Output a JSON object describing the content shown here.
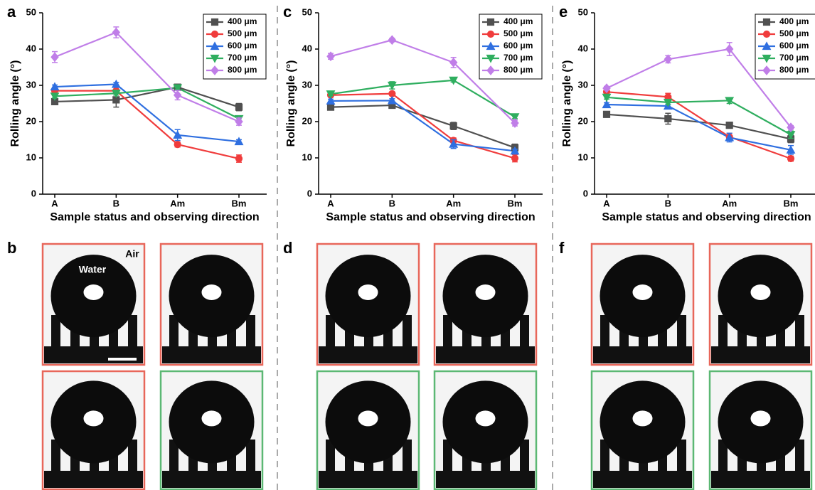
{
  "chart_data": [
    {
      "type": "line",
      "panel_label": "a",
      "categories": [
        "A",
        "B",
        "Am",
        "Bm"
      ],
      "xlabel": "Sample status and observing direction",
      "ylabel": "Rolling angle (°)",
      "ylim": [
        0,
        50
      ],
      "yticks": [
        0,
        10,
        20,
        30,
        40,
        50
      ],
      "legend": "upper right",
      "series": [
        {
          "name": "400 μm",
          "color": "#505050",
          "marker": "square",
          "values": [
            25.5,
            26,
            29.5,
            24
          ],
          "errors": [
            0.5,
            2,
            0.5,
            1
          ]
        },
        {
          "name": "500 μm",
          "color": "#f03c3c",
          "marker": "circle",
          "values": [
            28.5,
            28.5,
            13.7,
            9.8
          ],
          "errors": [
            0.5,
            0.5,
            0.7,
            1
          ]
        },
        {
          "name": "600 μm",
          "color": "#2f6fe0",
          "marker": "triangle-up",
          "values": [
            29.6,
            30.3,
            16.3,
            14.5
          ],
          "errors": [
            0.5,
            0.5,
            1.5,
            0.5
          ]
        },
        {
          "name": "700 μm",
          "color": "#2fae5f",
          "marker": "triangle-down",
          "values": [
            27,
            27.8,
            29.3,
            20.8
          ],
          "errors": [
            0.5,
            0.5,
            0.5,
            0.7
          ]
        },
        {
          "name": "800 μm",
          "color": "#c07ee8",
          "marker": "diamond",
          "values": [
            37.8,
            44.6,
            27.3,
            20
          ],
          "errors": [
            1.5,
            1.5,
            1.3,
            1
          ]
        }
      ]
    },
    {
      "type": "line",
      "panel_label": "c",
      "categories": [
        "A",
        "B",
        "Am",
        "Bm"
      ],
      "xlabel": "Sample status and observing direction",
      "ylabel": "Rolling angle (°)",
      "ylim": [
        0,
        50
      ],
      "yticks": [
        0,
        10,
        20,
        30,
        40,
        50
      ],
      "legend": "upper right",
      "series": [
        {
          "name": "400 μm",
          "color": "#505050",
          "marker": "square",
          "values": [
            24,
            24.5,
            18.8,
            12.8
          ],
          "errors": [
            0.7,
            0.5,
            1,
            1
          ]
        },
        {
          "name": "500 μm",
          "color": "#f03c3c",
          "marker": "circle",
          "values": [
            27.3,
            27.7,
            14.8,
            9.9
          ],
          "errors": [
            0.5,
            0.5,
            0.7,
            1
          ]
        },
        {
          "name": "600 μm",
          "color": "#2f6fe0",
          "marker": "triangle-up",
          "values": [
            25.7,
            25.8,
            13.8,
            11.9
          ],
          "errors": [
            0.5,
            0.5,
            1.2,
            0.5
          ]
        },
        {
          "name": "700 μm",
          "color": "#2fae5f",
          "marker": "triangle-down",
          "values": [
            27.6,
            30,
            31.4,
            21.3
          ],
          "errors": [
            0.5,
            1,
            0.5,
            0.5
          ]
        },
        {
          "name": "800 μm",
          "color": "#c07ee8",
          "marker": "diamond",
          "values": [
            38,
            42.5,
            36.3,
            19.6
          ],
          "errors": [
            0.8,
            0.5,
            1.4,
            0.8
          ]
        }
      ]
    },
    {
      "type": "line",
      "panel_label": "e",
      "categories": [
        "A",
        "B",
        "Am",
        "Bm"
      ],
      "xlabel": "Sample status and observing direction",
      "ylabel": "Rolling angle (°)",
      "ylim": [
        0,
        50
      ],
      "yticks": [
        0,
        10,
        20,
        30,
        40,
        50
      ],
      "legend": "upper right",
      "series": [
        {
          "name": "400 μm",
          "color": "#505050",
          "marker": "square",
          "values": [
            22,
            20.8,
            19,
            15.2
          ],
          "errors": [
            0.8,
            1.5,
            0.8,
            1
          ]
        },
        {
          "name": "500 μm",
          "color": "#f03c3c",
          "marker": "circle",
          "values": [
            28.2,
            26.8,
            15.8,
            9.8
          ],
          "errors": [
            0.5,
            1,
            1,
            0.7
          ]
        },
        {
          "name": "600 μm",
          "color": "#2f6fe0",
          "marker": "triangle-up",
          "values": [
            24.7,
            24.3,
            15.6,
            12.2
          ],
          "errors": [
            0.5,
            0.5,
            1.2,
            1.2
          ]
        },
        {
          "name": "700 μm",
          "color": "#2fae5f",
          "marker": "triangle-down",
          "values": [
            26.7,
            25.3,
            25.8,
            16.4
          ],
          "errors": [
            0.5,
            0.5,
            0.8,
            1
          ]
        },
        {
          "name": "800 μm",
          "color": "#c07ee8",
          "marker": "diamond",
          "values": [
            29.2,
            37.2,
            40,
            18.4
          ],
          "errors": [
            0.5,
            1,
            1.8,
            0.5
          ]
        }
      ]
    }
  ],
  "photo_panels": [
    {
      "label": "b",
      "annotations": [
        "Water",
        "Air"
      ]
    },
    {
      "label": "d"
    },
    {
      "label": "f"
    }
  ]
}
